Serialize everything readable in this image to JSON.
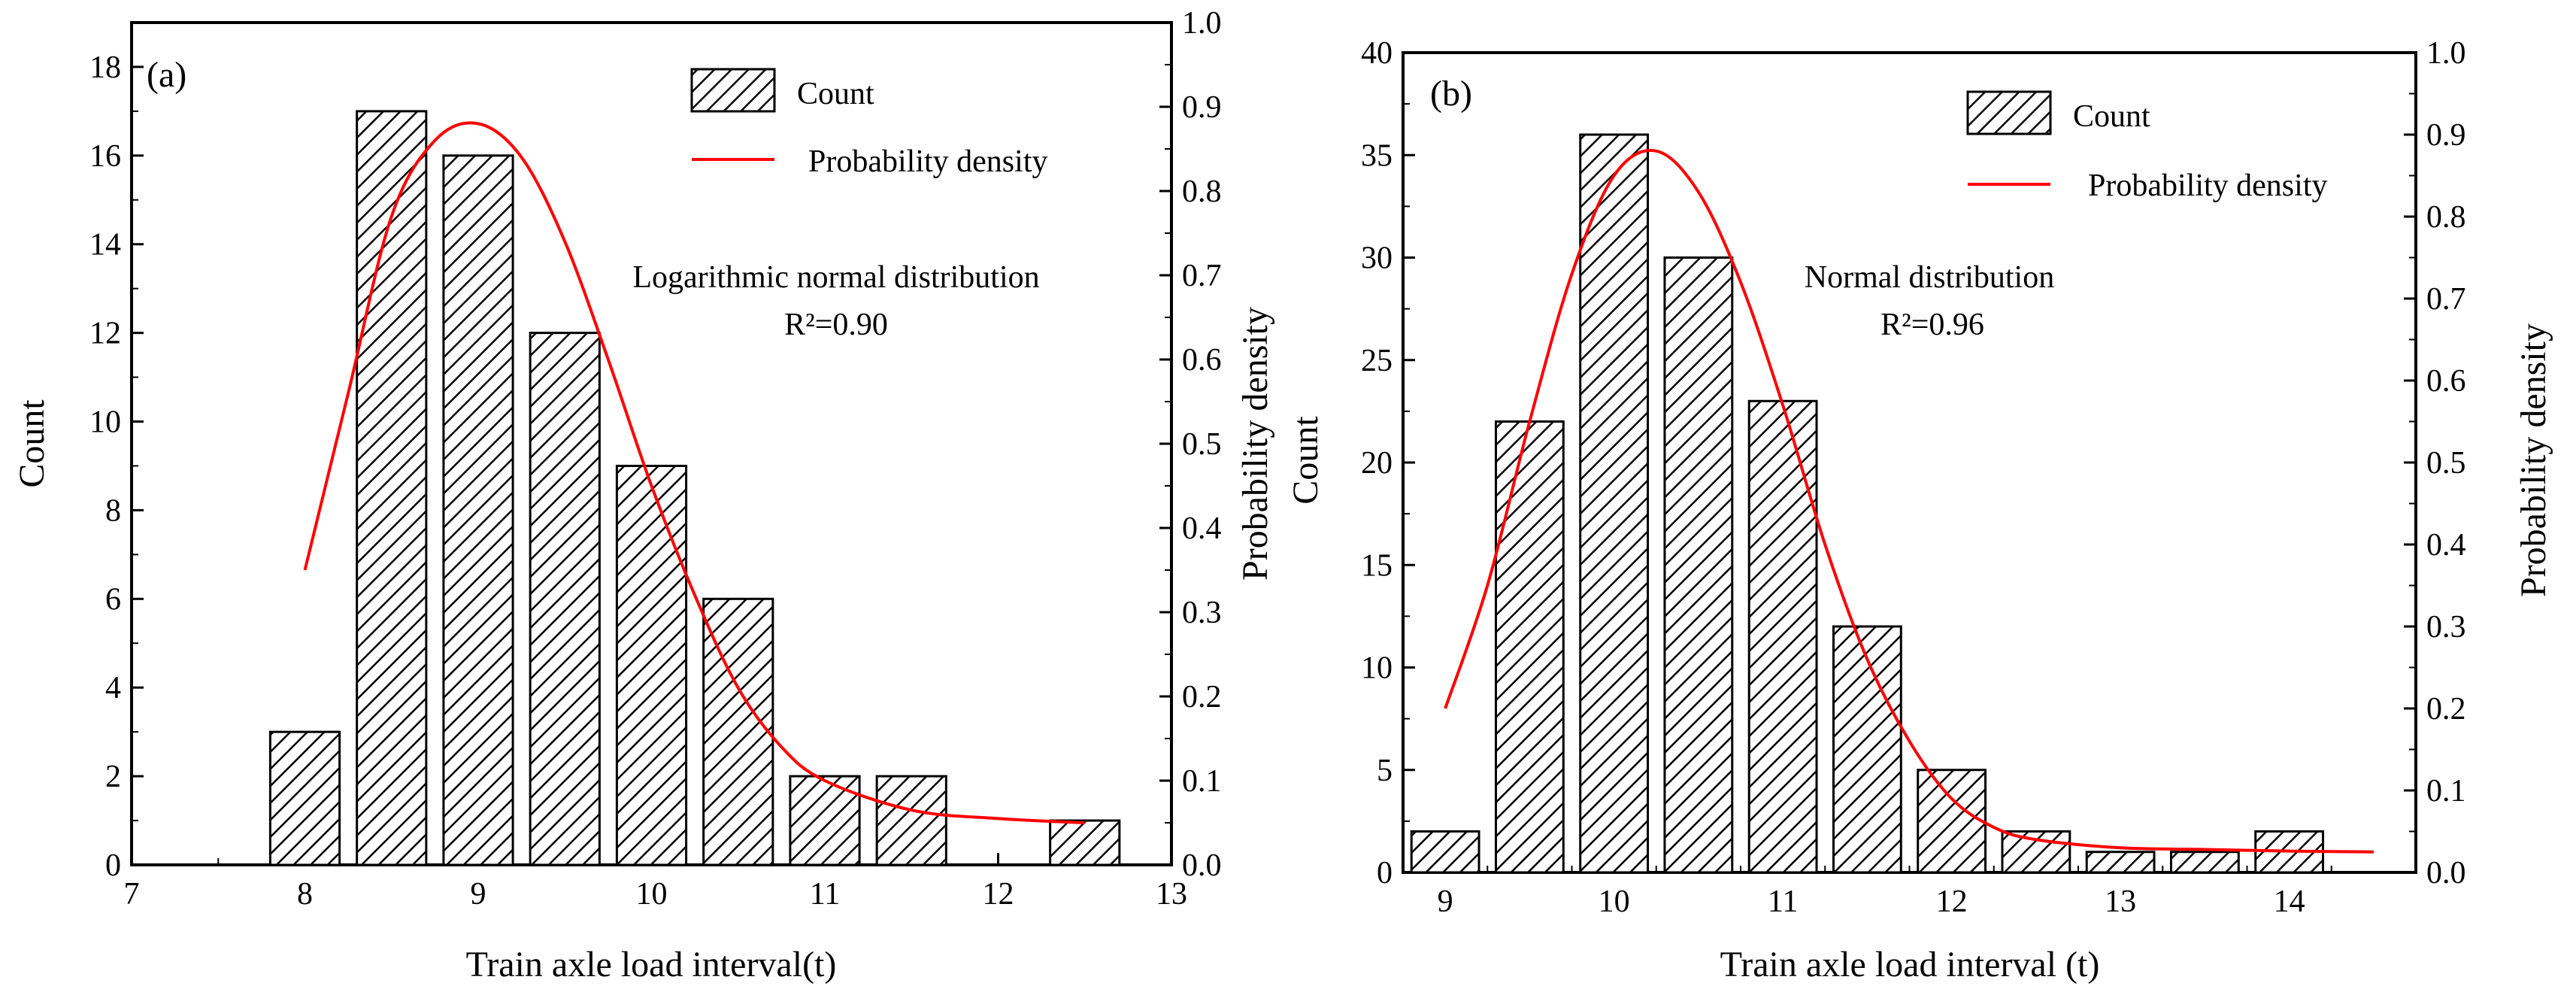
{
  "colors": {
    "bar_fill": "#ffffff",
    "hatch": "#000000",
    "density_line": "#ff0000",
    "axis": "#000000"
  },
  "chart_data": [
    {
      "type": "bar",
      "panel_label": "(a)",
      "title": "",
      "xlabel": "Train axle load interval(t)",
      "ylabel": "Count",
      "y2label": "Probability density",
      "xlim": [
        7,
        13
      ],
      "ylim": [
        0,
        19
      ],
      "y2lim": [
        0,
        1.0
      ],
      "xticks": [
        "7",
        "8",
        "9",
        "10",
        "11",
        "12",
        "13"
      ],
      "yticks": [
        "0",
        "2",
        "4",
        "6",
        "8",
        "10",
        "12",
        "14",
        "16",
        "18"
      ],
      "y2ticks": [
        "0.0",
        "0.1",
        "0.2",
        "0.3",
        "0.4",
        "0.5",
        "0.6",
        "0.7",
        "0.8",
        "0.9",
        "1.0"
      ],
      "bar_width": 0.4,
      "bars": [
        {
          "x": 8.0,
          "value": 3
        },
        {
          "x": 8.5,
          "value": 17
        },
        {
          "x": 9.0,
          "value": 16
        },
        {
          "x": 9.5,
          "value": 12
        },
        {
          "x": 10.0,
          "value": 9
        },
        {
          "x": 10.5,
          "value": 6
        },
        {
          "x": 11.0,
          "value": 2
        },
        {
          "x": 11.5,
          "value": 2
        },
        {
          "x": 12.5,
          "value": 1
        }
      ],
      "density_curve": {
        "name": "Probability density",
        "x": [
          8.0,
          8.25,
          8.5,
          8.75,
          9.0,
          9.25,
          9.5,
          9.75,
          10.0,
          10.25,
          10.5,
          10.75,
          11.0,
          11.5,
          12.0,
          12.5
        ],
        "y": [
          0.35,
          0.56,
          0.77,
          0.86,
          0.88,
          0.84,
          0.74,
          0.6,
          0.45,
          0.32,
          0.21,
          0.14,
          0.1,
          0.065,
          0.055,
          0.05
        ]
      },
      "legend": {
        "placement": "top-right",
        "entries": [
          "Count",
          "Probability density"
        ]
      },
      "annotation": {
        "line1": "Logarithmic normal distribution",
        "line2": "R²=0.90"
      }
    },
    {
      "type": "bar",
      "panel_label": "(b)",
      "title": "",
      "xlabel": "Train axle load interval (t)",
      "ylabel": "Count",
      "y2label": "Probability density",
      "xlim": [
        8.75,
        14.75
      ],
      "ylim": [
        0,
        40
      ],
      "y2lim": [
        0,
        1.0
      ],
      "xticks": [
        "9",
        "10",
        "11",
        "12",
        "13",
        "14"
      ],
      "xtick_values": [
        9,
        10,
        11,
        12,
        13,
        14
      ],
      "yticks": [
        "0",
        "5",
        "10",
        "15",
        "20",
        "25",
        "30",
        "35",
        "40"
      ],
      "y2ticks": [
        "0.0",
        "0.1",
        "0.2",
        "0.3",
        "0.4",
        "0.5",
        "0.6",
        "0.7",
        "0.8",
        "0.9",
        "1.0"
      ],
      "bar_width": 0.4,
      "bars": [
        {
          "x": 9.0,
          "value": 2
        },
        {
          "x": 9.5,
          "value": 22
        },
        {
          "x": 10.0,
          "value": 36
        },
        {
          "x": 10.5,
          "value": 30
        },
        {
          "x": 11.0,
          "value": 23
        },
        {
          "x": 11.5,
          "value": 12
        },
        {
          "x": 12.0,
          "value": 5
        },
        {
          "x": 12.5,
          "value": 2
        },
        {
          "x": 13.0,
          "value": 1
        },
        {
          "x": 13.5,
          "value": 1
        },
        {
          "x": 14.0,
          "value": 2
        }
      ],
      "density_curve": {
        "name": "Probability density",
        "x": [
          9.0,
          9.25,
          9.5,
          9.75,
          10.0,
          10.25,
          10.5,
          10.75,
          11.0,
          11.25,
          11.5,
          11.75,
          12.0,
          12.25,
          12.5,
          13.0,
          13.5,
          14.0,
          14.5
        ],
        "y": [
          0.2,
          0.35,
          0.55,
          0.73,
          0.85,
          0.88,
          0.83,
          0.72,
          0.57,
          0.4,
          0.26,
          0.16,
          0.09,
          0.055,
          0.04,
          0.03,
          0.028,
          0.026,
          0.025
        ]
      },
      "legend": {
        "placement": "top-right",
        "entries": [
          "Count",
          "Probability density"
        ]
      },
      "annotation": {
        "line1": "Normal distribution",
        "line2": "R²=0.96"
      }
    }
  ]
}
